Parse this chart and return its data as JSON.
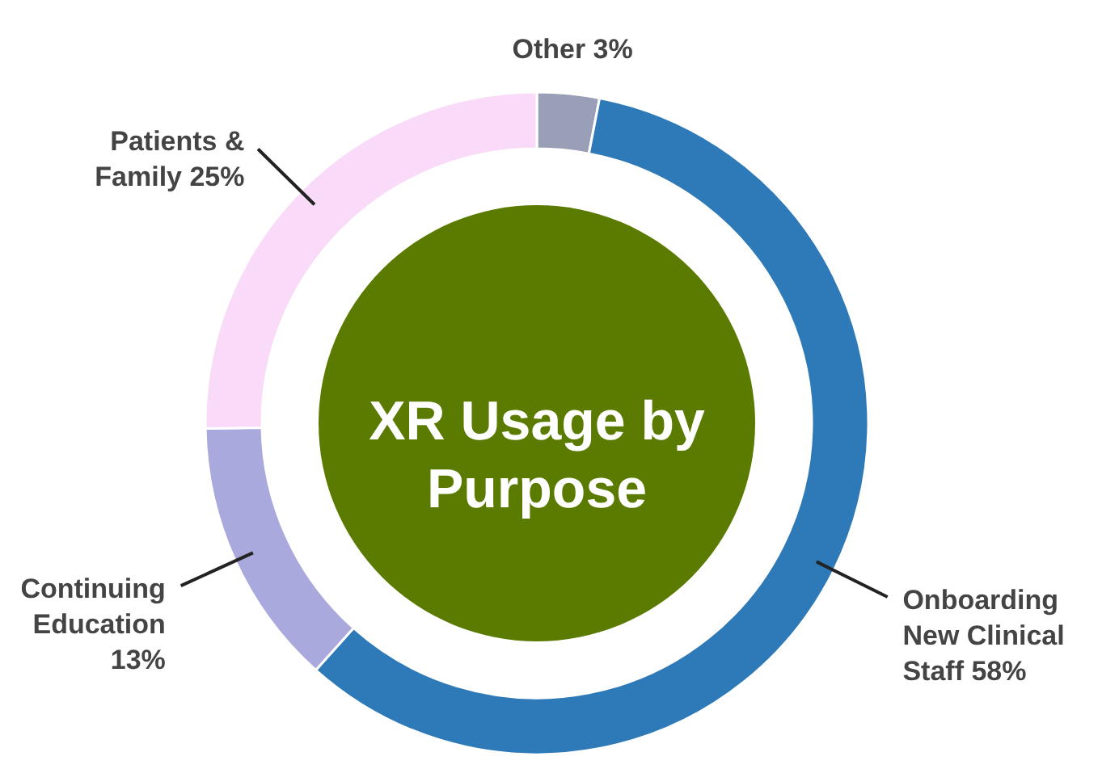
{
  "chart_data": {
    "type": "donut",
    "title": "XR Usage by Purpose",
    "categories": [
      "Other",
      "Onboarding New Clinical Staff",
      "Continuing Education",
      "Patients & Family"
    ],
    "values": [
      3,
      58,
      13,
      25
    ],
    "value_labels": [
      "3%",
      "58%",
      "13%",
      "25%"
    ],
    "colors": [
      "#9a9fb8",
      "#2e7ab8",
      "#aaa9de",
      "#f9daf8"
    ]
  }
}
